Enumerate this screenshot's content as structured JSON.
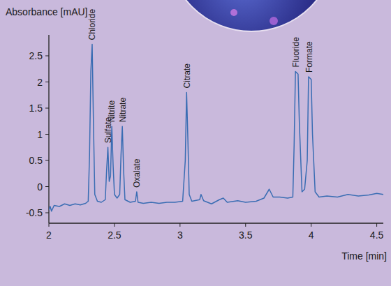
{
  "chart_data": {
    "type": "line",
    "xlabel": "Time [min]",
    "ylabel": "Absorbance [mAU]",
    "color": "#3a6db3",
    "grid": false,
    "xlim": [
      2,
      4.55
    ],
    "ylim": [
      -0.7,
      2.9
    ],
    "xticks": [
      2,
      2.5,
      3,
      3.5,
      4,
      4.5
    ],
    "yticks": [
      -0.5,
      0,
      0.5,
      1,
      1.5,
      2,
      2.5
    ],
    "x": [
      2.0,
      2.01,
      2.02,
      2.04,
      2.08,
      2.12,
      2.16,
      2.2,
      2.24,
      2.28,
      2.3,
      2.31,
      2.32,
      2.33,
      2.34,
      2.35,
      2.37,
      2.4,
      2.43,
      2.44,
      2.45,
      2.46,
      2.47,
      2.48,
      2.49,
      2.5,
      2.52,
      2.54,
      2.55,
      2.56,
      2.57,
      2.58,
      2.62,
      2.66,
      2.67,
      2.68,
      2.72,
      2.78,
      2.84,
      2.9,
      2.96,
      3.02,
      3.04,
      3.05,
      3.06,
      3.07,
      3.09,
      3.15,
      3.16,
      3.18,
      3.24,
      3.3,
      3.33,
      3.36,
      3.44,
      3.5,
      3.58,
      3.64,
      3.68,
      3.71,
      3.76,
      3.82,
      3.86,
      3.87,
      3.88,
      3.9,
      3.91,
      3.93,
      3.95,
      3.97,
      3.98,
      4.0,
      4.01,
      4.03,
      4.06,
      4.12,
      4.2,
      4.28,
      4.36,
      4.44,
      4.5,
      4.55
    ],
    "values": [
      -0.45,
      -0.38,
      -0.47,
      -0.36,
      -0.38,
      -0.33,
      -0.36,
      -0.33,
      -0.35,
      -0.32,
      -0.28,
      0.6,
      2.2,
      2.72,
      1.2,
      -0.15,
      -0.28,
      -0.3,
      -0.25,
      0.3,
      0.75,
      0.1,
      0.2,
      1.15,
      0.4,
      -0.15,
      -0.22,
      -0.15,
      0.6,
      1.15,
      0.3,
      -0.25,
      -0.3,
      -0.28,
      -0.1,
      -0.3,
      -0.32,
      -0.3,
      -0.32,
      -0.3,
      -0.3,
      -0.28,
      0.5,
      1.8,
      0.9,
      -0.15,
      -0.28,
      -0.25,
      -0.15,
      -0.27,
      -0.33,
      -0.25,
      -0.22,
      -0.3,
      -0.27,
      -0.3,
      -0.28,
      -0.22,
      -0.05,
      -0.2,
      -0.2,
      -0.22,
      -0.2,
      0.8,
      2.2,
      2.15,
      1.2,
      -0.1,
      -0.05,
      0.5,
      2.1,
      2.05,
      1.0,
      -0.1,
      -0.2,
      -0.18,
      -0.2,
      -0.15,
      -0.18,
      -0.16,
      -0.13,
      -0.15
    ],
    "annotations": [
      {
        "text": "Chloride",
        "x": 2.33,
        "y": 2.72
      },
      {
        "text": "Sulfate",
        "x": 2.45,
        "y": 0.75
      },
      {
        "text": "Nitrite",
        "x": 2.48,
        "y": 1.15
      },
      {
        "text": "Nitrate",
        "x": 2.56,
        "y": 1.15
      },
      {
        "text": "Oxalate",
        "x": 2.67,
        "y": -0.1
      },
      {
        "text": "Citrate",
        "x": 3.05,
        "y": 1.8
      },
      {
        "text": "Fluoride",
        "x": 3.885,
        "y": 2.2
      },
      {
        "text": "Formate",
        "x": 3.985,
        "y": 2.1
      }
    ]
  }
}
